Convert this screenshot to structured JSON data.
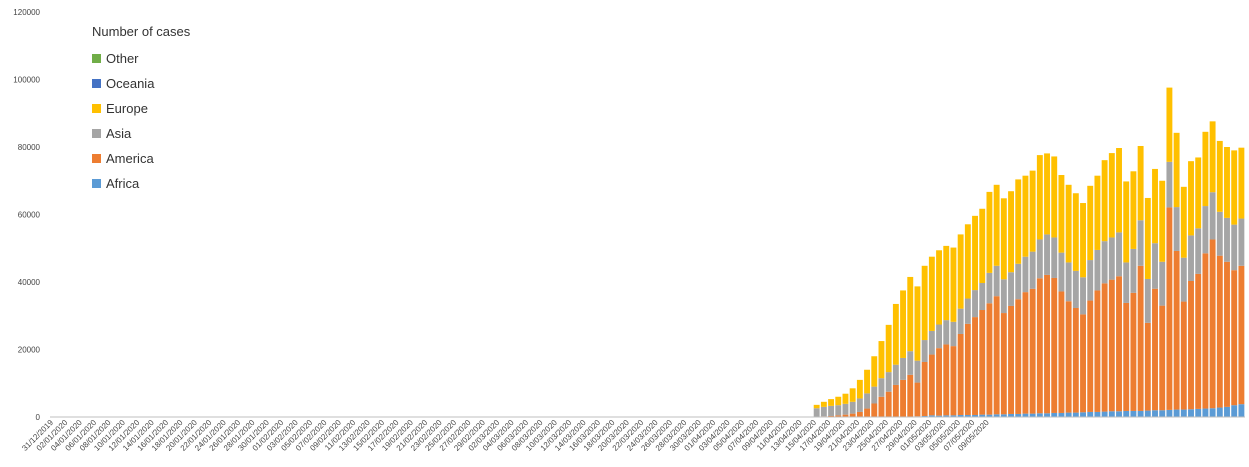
{
  "chart_data": {
    "type": "bar",
    "stacked": true,
    "legend_title": "Number of cases",
    "legend_position": "top-left",
    "grid": false,
    "ylim": [
      0,
      120000
    ],
    "y_ticks": [
      0,
      20000,
      40000,
      60000,
      80000,
      100000,
      120000
    ],
    "y_tick_labels": [
      "0",
      "20000",
      "40000",
      "60000",
      "80000",
      "100000",
      "120000"
    ],
    "start_date": "31/12/2019",
    "x_tick_labels": [
      "31/12/2019",
      "02/01/2020",
      "04/01/2020",
      "06/01/2020",
      "08/01/2020",
      "10/01/2020",
      "12/01/2020",
      "14/01/2020",
      "16/01/2020",
      "18/01/2020",
      "20/01/2020",
      "22/01/2020",
      "24/01/2020",
      "26/01/2020",
      "28/01/2020",
      "30/01/2020",
      "01/02/2020",
      "03/02/2020",
      "05/02/2020",
      "07/02/2020",
      "09/02/2020",
      "11/02/2020",
      "13/02/2020",
      "15/02/2020",
      "17/02/2020",
      "19/02/2020",
      "21/02/2020",
      "23/02/2020",
      "25/02/2020",
      "27/02/2020",
      "29/02/2020",
      "02/03/2020",
      "04/03/2020",
      "06/03/2020",
      "08/03/2020",
      "10/03/2020",
      "12/03/2020",
      "14/03/2020",
      "16/03/2020",
      "18/03/2020",
      "20/03/2020",
      "22/03/2020",
      "24/03/2020",
      "26/03/2020",
      "28/03/2020",
      "30/03/2020",
      "01/04/2020",
      "03/04/2020",
      "05/04/2020",
      "07/04/2020",
      "09/04/2020",
      "11/04/2020",
      "13/04/2020",
      "15/04/2020",
      "17/04/2020",
      "19/04/2020",
      "21/04/2020",
      "23/04/2020",
      "25/04/2020",
      "27/04/2020",
      "29/04/2020",
      "01/05/2020",
      "03/05/2020",
      "05/05/2020",
      "07/05/2020",
      "09/05/2020"
    ],
    "series": [
      {
        "name": "Africa",
        "color": "#5B9BD5",
        "values": [
          0,
          0,
          0,
          0,
          0,
          0,
          0,
          0,
          0,
          0,
          0,
          0,
          0,
          0,
          0,
          0,
          0,
          0,
          0,
          0,
          0,
          0,
          0,
          0,
          0,
          0,
          0,
          0,
          0,
          0,
          0,
          0,
          0,
          0,
          0,
          0,
          0,
          0,
          0,
          0,
          0,
          0,
          0,
          0,
          0,
          0,
          0,
          0,
          0,
          0,
          0,
          0,
          0,
          0,
          0,
          0,
          0,
          0,
          0,
          0,
          0,
          0,
          0,
          0,
          0,
          0,
          0,
          0,
          0,
          0,
          0,
          0,
          0,
          0,
          0,
          0,
          0,
          0,
          0,
          0,
          0,
          0,
          0,
          0,
          0,
          0,
          0,
          0,
          0,
          0,
          0,
          0,
          0,
          0,
          0,
          0,
          0,
          0,
          0,
          0,
          0,
          0,
          0,
          0,
          0,
          0,
          0,
          0,
          0,
          0,
          0,
          0,
          0,
          0,
          0,
          0,
          0,
          0,
          0,
          0,
          200,
          300,
          500,
          400,
          500,
          500,
          600,
          600,
          600,
          700,
          700,
          800,
          800,
          900,
          900,
          1000,
          1000,
          1100,
          1100,
          1200,
          1200,
          1300,
          1300,
          1400,
          1500,
          1500,
          1600,
          1700,
          1700,
          1800,
          1800,
          1800,
          1900,
          2000,
          2000,
          2100,
          2200,
          2200,
          2300,
          2400,
          2500,
          2600,
          2800,
          3000,
          3500,
          3800
        ]
      },
      {
        "name": "America",
        "color": "#ED7D31",
        "values": [
          0,
          0,
          0,
          0,
          0,
          0,
          0,
          0,
          0,
          0,
          0,
          0,
          0,
          0,
          0,
          0,
          0,
          0,
          0,
          0,
          0,
          0,
          0,
          0,
          0,
          0,
          0,
          0,
          0,
          0,
          0,
          0,
          0,
          0,
          0,
          0,
          0,
          0,
          0,
          0,
          0,
          0,
          0,
          0,
          0,
          0,
          0,
          0,
          0,
          0,
          0,
          0,
          0,
          0,
          0,
          0,
          0,
          0,
          0,
          0,
          0,
          0,
          0,
          0,
          0,
          0,
          0,
          0,
          0,
          0,
          0,
          0,
          0,
          0,
          0,
          0,
          0,
          0,
          0,
          0,
          0,
          0,
          0,
          0,
          0,
          0,
          0,
          0,
          0,
          0,
          0,
          0,
          0,
          0,
          0,
          0,
          0,
          0,
          0,
          0,
          0,
          0,
          0,
          0,
          0,
          0,
          100,
          200,
          300,
          500,
          700,
          1000,
          1500,
          2500,
          4000,
          6000,
          7500,
          9500,
          11000,
          12500,
          10000,
          16000,
          18000,
          20000,
          21000,
          20500,
          24000,
          27000,
          29000,
          31000,
          33000,
          35000,
          30000,
          32000,
          34000,
          36000,
          37000,
          40000,
          41000,
          40000,
          36000,
          33000,
          31000,
          29000,
          33000,
          36000,
          38000,
          39000,
          40000,
          32000,
          35000,
          43000,
          26000,
          36000,
          31000,
          60000,
          47000,
          32000,
          38000,
          40000,
          46000,
          50000,
          45000,
          43000,
          40000,
          41000,
          43000,
          50000,
          47000,
          46000
        ]
      },
      {
        "name": "Asia",
        "color": "#A5A5A5",
        "values": [
          0,
          0,
          0,
          0,
          0,
          0,
          0,
          0,
          0,
          0,
          0,
          0,
          0,
          0,
          0,
          0,
          0,
          0,
          0,
          0,
          0,
          0,
          0,
          0,
          0,
          0,
          0,
          0,
          0,
          0,
          0,
          0,
          0,
          0,
          0,
          0,
          0,
          0,
          0,
          0,
          0,
          0,
          0,
          0,
          0,
          0,
          0,
          0,
          0,
          0,
          0,
          0,
          0,
          0,
          0,
          0,
          0,
          0,
          0,
          0,
          0,
          0,
          0,
          0,
          0,
          0,
          0,
          0,
          0,
          0,
          0,
          0,
          0,
          0,
          0,
          0,
          0,
          0,
          0,
          0,
          0,
          0,
          0,
          0,
          0,
          0,
          0,
          0,
          0,
          0,
          0,
          0,
          0,
          0,
          0,
          0,
          0,
          0,
          0,
          0,
          0,
          0,
          0,
          0,
          0,
          0,
          2500,
          2800,
          3000,
          3000,
          3200,
          3500,
          4000,
          4500,
          5000,
          5500,
          5800,
          6000,
          6500,
          7000,
          6500,
          6500,
          7000,
          7000,
          7200,
          7200,
          7500,
          7500,
          8000,
          8000,
          9000,
          9000,
          10000,
          10000,
          10500,
          10500,
          11000,
          11500,
          12000,
          12000,
          11500,
          11500,
          11000,
          11000,
          12000,
          12000,
          12500,
          12500,
          13000,
          12000,
          13000,
          13500,
          13000,
          13500,
          13000,
          13500,
          13000,
          13000,
          13500,
          13500,
          14000,
          14000,
          13000,
          13000,
          13500,
          14000,
          15000,
          15000,
          15000,
          16000
        ]
      },
      {
        "name": "Europe",
        "color": "#FFC000",
        "values": [
          0,
          0,
          0,
          0,
          0,
          0,
          0,
          0,
          0,
          0,
          0,
          0,
          0,
          0,
          0,
          0,
          0,
          0,
          0,
          0,
          0,
          0,
          0,
          0,
          0,
          0,
          0,
          0,
          0,
          0,
          0,
          0,
          0,
          0,
          0,
          0,
          0,
          0,
          0,
          0,
          0,
          0,
          0,
          0,
          0,
          0,
          0,
          0,
          0,
          0,
          0,
          0,
          0,
          0,
          0,
          0,
          0,
          0,
          0,
          0,
          0,
          0,
          0,
          0,
          0,
          0,
          0,
          0,
          0,
          0,
          0,
          0,
          0,
          0,
          0,
          0,
          0,
          0,
          0,
          0,
          0,
          0,
          0,
          0,
          0,
          0,
          0,
          0,
          0,
          0,
          0,
          0,
          0,
          0,
          0,
          0,
          0,
          0,
          0,
          0,
          0,
          0,
          0,
          0,
          0,
          0,
          1000,
          1500,
          2000,
          2500,
          3000,
          4000,
          5500,
          7000,
          9000,
          11000,
          14000,
          18000,
          20000,
          22000,
          22000,
          22000,
          22000,
          22000,
          22000,
          22000,
          22000,
          22000,
          22000,
          22000,
          24000,
          24000,
          24000,
          24000,
          25000,
          24000,
          24000,
          25000,
          24000,
          24000,
          23000,
          23000,
          23000,
          22000,
          22000,
          22000,
          24000,
          25000,
          25000,
          24000,
          23000,
          22000,
          24000,
          22000,
          24000,
          22000,
          22000,
          21000,
          22000,
          21000,
          22000,
          21000,
          21000,
          21000,
          22000,
          21000,
          21000,
          20000,
          20000,
          20000,
          20000,
          20000
        ]
      },
      {
        "name": "Oceania",
        "color": "#4472C4",
        "values": [
          0,
          0,
          0,
          0,
          0,
          0,
          0,
          0,
          0,
          0,
          0,
          0,
          0,
          0,
          0,
          0,
          0,
          0,
          0,
          0,
          0,
          0,
          0,
          0,
          0,
          0,
          0,
          0,
          0,
          0,
          0,
          0,
          0,
          0,
          0,
          0,
          0,
          0,
          0,
          0,
          0,
          0,
          0,
          0,
          0,
          0,
          0,
          0,
          0,
          0,
          0,
          0,
          0,
          0,
          0,
          0,
          0,
          0,
          0,
          0,
          0,
          0,
          0,
          0,
          0,
          0,
          0,
          0,
          0,
          0,
          0,
          0,
          0,
          0,
          0,
          0,
          0,
          0,
          0,
          0,
          0,
          0,
          0,
          0,
          0,
          0,
          0,
          0,
          0,
          0,
          0,
          0,
          0,
          0,
          0,
          0,
          0,
          0,
          0,
          0,
          0,
          0,
          0,
          0,
          0,
          0,
          0,
          0,
          0,
          0,
          0,
          0,
          0,
          0,
          0,
          0,
          0,
          0,
          0,
          0,
          0,
          0,
          0,
          0,
          0,
          0,
          0,
          0,
          0,
          0,
          0,
          0,
          0,
          0,
          0,
          0,
          0,
          0,
          0,
          0,
          0,
          0,
          0,
          0,
          0,
          0,
          0,
          0,
          0,
          0,
          0,
          0,
          0,
          0,
          0,
          0,
          0,
          0,
          0,
          0,
          0,
          0,
          0,
          0,
          0,
          0,
          0,
          0,
          0,
          0,
          0,
          0,
          0,
          0,
          0,
          0,
          0,
          0
        ]
      },
      {
        "name": "Other",
        "color": "#70AD47",
        "values": [
          0,
          0,
          0,
          0,
          0,
          0,
          0,
          0,
          0,
          0,
          0,
          0,
          0,
          0,
          0,
          0,
          0,
          0,
          0,
          0,
          0,
          0,
          0,
          0,
          0,
          0,
          0,
          0,
          0,
          0,
          0,
          0,
          0,
          0,
          0,
          0,
          0,
          0,
          0,
          0,
          0,
          0,
          0,
          0,
          0,
          0,
          0,
          0,
          0,
          0,
          0,
          0,
          0,
          0,
          0,
          0,
          0,
          0,
          0,
          0,
          0,
          0,
          0,
          0,
          0,
          0,
          0,
          0,
          0,
          0,
          0,
          0,
          0,
          0,
          0,
          0,
          0,
          0,
          0,
          0,
          0,
          0,
          0,
          0,
          0,
          0,
          0,
          0,
          0,
          0,
          0,
          0,
          0,
          0,
          0,
          0,
          0,
          0,
          0,
          0,
          0,
          0,
          0,
          0,
          0,
          0,
          0,
          0,
          0,
          0,
          0,
          0,
          0,
          0,
          0,
          0,
          0,
          0,
          0,
          0,
          0,
          0,
          0,
          0,
          0,
          0,
          0,
          0,
          0,
          0,
          0,
          0,
          0,
          0,
          0,
          0,
          0,
          0,
          0,
          0,
          0,
          0,
          0,
          0,
          0,
          0,
          0,
          0,
          0,
          0,
          0,
          0,
          0,
          0,
          0,
          0,
          0,
          0,
          0,
          0,
          0,
          0,
          0,
          0,
          0,
          0,
          0,
          0,
          0,
          0,
          0,
          0,
          0,
          0,
          0,
          0,
          0,
          0
        ]
      }
    ],
    "legend": [
      "Other",
      "Oceania",
      "Europe",
      "Asia",
      "America",
      "Africa"
    ]
  }
}
